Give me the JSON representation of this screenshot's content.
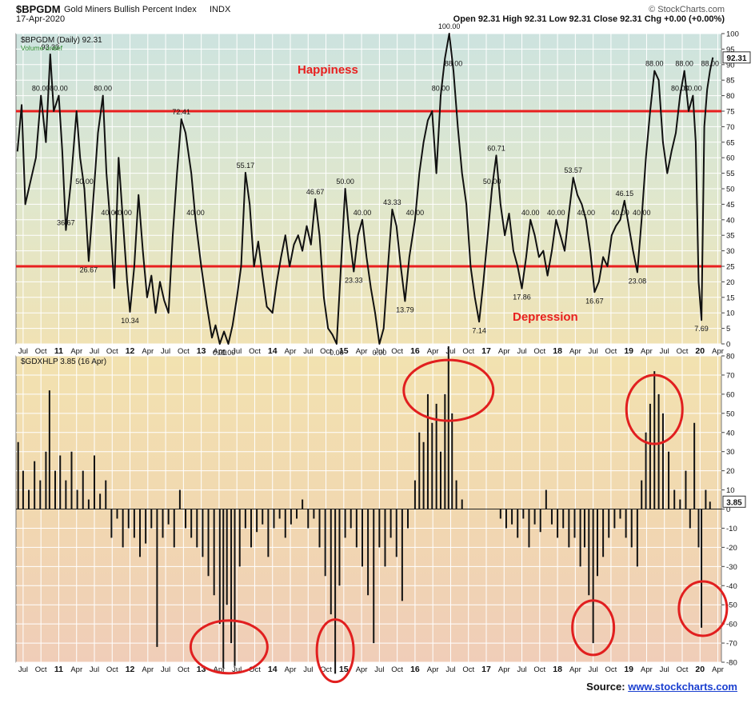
{
  "header": {
    "symbol": "$BPGDM",
    "name": "Gold Miners Bullish Percent Index",
    "exchange": "INDX",
    "date": "17-Apr-2020",
    "watermark": "© StockCharts.com",
    "quote": "Open 92.31  High 92.31  Low 92.31  Close 92.31  Chg +0.00 (+0.00%)"
  },
  "top_panel": {
    "legend": "$BPGDM (Daily) 92.31",
    "volume_note": "Volume undef",
    "annotation_top": "Happiness",
    "annotation_bottom": "Depression",
    "last_value_label": "92.31"
  },
  "bottom_panel": {
    "legend": "$GDXHLP 3.85 (16 Apr)",
    "last_value_label": "3.85"
  },
  "source": {
    "prefix": "Source:",
    "link": "www.stockcharts.com"
  },
  "colors": {
    "line": "#111111",
    "threshold": "#e81f1f",
    "circle": "#e11f1f",
    "annotation": "#e8201f",
    "grid": "#ffffff"
  },
  "chart_data": [
    {
      "type": "line",
      "title": "$BPGDM Gold Miners Bullish Percent Index",
      "series_label": "$BPGDM (Daily) 92.31",
      "ylim": [
        0,
        100
      ],
      "yticks": [
        0,
        5,
        10,
        15,
        20,
        25,
        30,
        35,
        40,
        45,
        50,
        55,
        60,
        65,
        70,
        75,
        80,
        85,
        90,
        95,
        100
      ],
      "xticks": [
        "Jul",
        "Oct",
        "11",
        "Apr",
        "Jul",
        "Oct",
        "12",
        "Apr",
        "Jul",
        "Oct",
        "13",
        "Apr",
        "Jul",
        "Oct",
        "14",
        "Apr",
        "Jul",
        "Oct",
        "15",
        "Apr",
        "Jul",
        "Oct",
        "16",
        "Apr",
        "Jul",
        "Oct",
        "17",
        "Apr",
        "Jul",
        "Oct",
        "18",
        "Apr",
        "Jul",
        "Oct",
        "19",
        "Apr",
        "Jul",
        "Oct",
        "20",
        "Apr"
      ],
      "horizontal_lines": [
        75,
        25
      ],
      "points": [
        [
          2010.42,
          62
        ],
        [
          2010.48,
          77
        ],
        [
          2010.53,
          45
        ],
        [
          2010.6,
          52
        ],
        [
          2010.68,
          60
        ],
        [
          2010.75,
          80
        ],
        [
          2010.82,
          65
        ],
        [
          2010.88,
          93.33
        ],
        [
          2010.93,
          75
        ],
        [
          2011.0,
          80
        ],
        [
          2011.05,
          62
        ],
        [
          2011.1,
          36.67
        ],
        [
          2011.17,
          52
        ],
        [
          2011.25,
          75
        ],
        [
          2011.3,
          60
        ],
        [
          2011.36,
          50
        ],
        [
          2011.42,
          26.67
        ],
        [
          2011.48,
          45
        ],
        [
          2011.55,
          68
        ],
        [
          2011.62,
          80.0
        ],
        [
          2011.67,
          55
        ],
        [
          2011.72,
          40
        ],
        [
          2011.78,
          18
        ],
        [
          2011.84,
          60
        ],
        [
          2011.9,
          40
        ],
        [
          2011.96,
          20
        ],
        [
          2012.0,
          10.34
        ],
        [
          2012.06,
          25
        ],
        [
          2012.12,
          48
        ],
        [
          2012.18,
          30
        ],
        [
          2012.24,
          15
        ],
        [
          2012.3,
          22
        ],
        [
          2012.36,
          10
        ],
        [
          2012.42,
          20
        ],
        [
          2012.48,
          14
        ],
        [
          2012.54,
          10
        ],
        [
          2012.6,
          35
        ],
        [
          2012.66,
          55
        ],
        [
          2012.72,
          72.41
        ],
        [
          2012.78,
          68
        ],
        [
          2012.86,
          55
        ],
        [
          2012.92,
          40
        ],
        [
          2013.0,
          25
        ],
        [
          2013.08,
          12
        ],
        [
          2013.15,
          2
        ],
        [
          2013.2,
          6
        ],
        [
          2013.26,
          0
        ],
        [
          2013.32,
          4
        ],
        [
          2013.38,
          0
        ],
        [
          2013.44,
          6
        ],
        [
          2013.5,
          15
        ],
        [
          2013.56,
          25
        ],
        [
          2013.62,
          55.17
        ],
        [
          2013.68,
          45
        ],
        [
          2013.74,
          25
        ],
        [
          2013.8,
          33
        ],
        [
          2013.86,
          22
        ],
        [
          2013.92,
          12
        ],
        [
          2014.0,
          10
        ],
        [
          2014.06,
          20
        ],
        [
          2014.12,
          28
        ],
        [
          2014.18,
          35
        ],
        [
          2014.24,
          25
        ],
        [
          2014.3,
          32
        ],
        [
          2014.36,
          35
        ],
        [
          2014.42,
          30
        ],
        [
          2014.48,
          38
        ],
        [
          2014.54,
          32
        ],
        [
          2014.6,
          46.67
        ],
        [
          2014.66,
          35
        ],
        [
          2014.72,
          15
        ],
        [
          2014.78,
          5
        ],
        [
          2014.84,
          3
        ],
        [
          2014.9,
          0
        ],
        [
          2014.96,
          25
        ],
        [
          2015.02,
          50.0
        ],
        [
          2015.08,
          35
        ],
        [
          2015.14,
          23.33
        ],
        [
          2015.2,
          35
        ],
        [
          2015.26,
          40.0
        ],
        [
          2015.32,
          28
        ],
        [
          2015.38,
          18
        ],
        [
          2015.44,
          10
        ],
        [
          2015.5,
          0.0
        ],
        [
          2015.56,
          5
        ],
        [
          2015.62,
          25
        ],
        [
          2015.68,
          43.33
        ],
        [
          2015.74,
          38
        ],
        [
          2015.8,
          25
        ],
        [
          2015.86,
          13.79
        ],
        [
          2015.92,
          28
        ],
        [
          2016.0,
          40
        ],
        [
          2016.06,
          55
        ],
        [
          2016.12,
          65
        ],
        [
          2016.18,
          72
        ],
        [
          2016.24,
          75
        ],
        [
          2016.3,
          55
        ],
        [
          2016.36,
          80
        ],
        [
          2016.42,
          92
        ],
        [
          2016.48,
          100.0
        ],
        [
          2016.54,
          88
        ],
        [
          2016.6,
          70
        ],
        [
          2016.66,
          55
        ],
        [
          2016.72,
          45
        ],
        [
          2016.78,
          25
        ],
        [
          2016.84,
          15
        ],
        [
          2016.9,
          7.14
        ],
        [
          2016.96,
          20
        ],
        [
          2017.02,
          35
        ],
        [
          2017.08,
          50
        ],
        [
          2017.14,
          60.71
        ],
        [
          2017.2,
          45
        ],
        [
          2017.26,
          35
        ],
        [
          2017.32,
          42
        ],
        [
          2017.38,
          30
        ],
        [
          2017.44,
          25
        ],
        [
          2017.5,
          17.86
        ],
        [
          2017.56,
          28
        ],
        [
          2017.62,
          40
        ],
        [
          2017.68,
          35
        ],
        [
          2017.74,
          28
        ],
        [
          2017.8,
          30
        ],
        [
          2017.86,
          22
        ],
        [
          2017.92,
          30
        ],
        [
          2017.98,
          40
        ],
        [
          2018.04,
          35
        ],
        [
          2018.1,
          30
        ],
        [
          2018.16,
          42
        ],
        [
          2018.22,
          53.57
        ],
        [
          2018.28,
          48
        ],
        [
          2018.34,
          45
        ],
        [
          2018.4,
          40
        ],
        [
          2018.46,
          30
        ],
        [
          2018.52,
          16.67
        ],
        [
          2018.58,
          20
        ],
        [
          2018.64,
          28
        ],
        [
          2018.7,
          25
        ],
        [
          2018.76,
          35
        ],
        [
          2018.82,
          38
        ],
        [
          2018.88,
          40
        ],
        [
          2018.94,
          46.15
        ],
        [
          2019.0,
          38
        ],
        [
          2019.06,
          30
        ],
        [
          2019.12,
          23.08
        ],
        [
          2019.18,
          40
        ],
        [
          2019.24,
          60
        ],
        [
          2019.3,
          75
        ],
        [
          2019.36,
          88
        ],
        [
          2019.42,
          85
        ],
        [
          2019.48,
          65
        ],
        [
          2019.54,
          55
        ],
        [
          2019.6,
          62
        ],
        [
          2019.66,
          68
        ],
        [
          2019.72,
          80
        ],
        [
          2019.78,
          88.0
        ],
        [
          2019.84,
          75
        ],
        [
          2019.9,
          80
        ],
        [
          2019.94,
          65
        ],
        [
          2019.98,
          20
        ],
        [
          2020.02,
          7.69
        ],
        [
          2020.06,
          70
        ],
        [
          2020.1,
          82
        ],
        [
          2020.14,
          88
        ],
        [
          2020.18,
          92.31
        ]
      ]
    },
    {
      "type": "bar",
      "title": "$GDXHLP",
      "series_label": "$GDXHLP 3.85 (16 Apr)",
      "ylim": [
        -80,
        80
      ],
      "yticks": [
        80,
        70,
        60,
        50,
        40,
        30,
        20,
        10,
        0,
        -10,
        -20,
        -30,
        -40,
        -50,
        -60,
        -70,
        -80
      ],
      "xticks": [
        "Jul",
        "Oct",
        "11",
        "Apr",
        "Jul",
        "Oct",
        "12",
        "Apr",
        "Jul",
        "Oct",
        "13",
        "Apr",
        "Jul",
        "Oct",
        "14",
        "Apr",
        "Jul",
        "Oct",
        "15",
        "Apr",
        "Jul",
        "Oct",
        "16",
        "Apr",
        "Jul",
        "Oct",
        "17",
        "Apr",
        "Jul",
        "Oct",
        "18",
        "Apr",
        "Jul",
        "Oct",
        "19",
        "Apr",
        "Jul",
        "Oct",
        "20",
        "Apr"
      ],
      "points": [
        [
          2010.43,
          35
        ],
        [
          2010.5,
          20
        ],
        [
          2010.58,
          10
        ],
        [
          2010.66,
          25
        ],
        [
          2010.74,
          15
        ],
        [
          2010.82,
          30
        ],
        [
          2010.87,
          62
        ],
        [
          2010.95,
          20
        ],
        [
          2011.02,
          28
        ],
        [
          2011.1,
          15
        ],
        [
          2011.18,
          30
        ],
        [
          2011.26,
          10
        ],
        [
          2011.34,
          20
        ],
        [
          2011.42,
          5
        ],
        [
          2011.5,
          28
        ],
        [
          2011.58,
          8
        ],
        [
          2011.66,
          15
        ],
        [
          2011.74,
          -15
        ],
        [
          2011.82,
          -5
        ],
        [
          2011.9,
          -20
        ],
        [
          2011.98,
          -10
        ],
        [
          2012.06,
          -15
        ],
        [
          2012.14,
          -25
        ],
        [
          2012.22,
          -18
        ],
        [
          2012.3,
          -10
        ],
        [
          2012.38,
          -72
        ],
        [
          2012.46,
          -15
        ],
        [
          2012.54,
          -8
        ],
        [
          2012.62,
          -20
        ],
        [
          2012.7,
          10
        ],
        [
          2012.78,
          -10
        ],
        [
          2012.86,
          -15
        ],
        [
          2012.94,
          -20
        ],
        [
          2013.02,
          -25
        ],
        [
          2013.1,
          -35
        ],
        [
          2013.18,
          -45
        ],
        [
          2013.26,
          -60
        ],
        [
          2013.31,
          -83
        ],
        [
          2013.36,
          -50
        ],
        [
          2013.42,
          -70
        ],
        [
          2013.47,
          -82
        ],
        [
          2013.54,
          -30
        ],
        [
          2013.62,
          -10
        ],
        [
          2013.7,
          -20
        ],
        [
          2013.78,
          -12
        ],
        [
          2013.86,
          -8
        ],
        [
          2013.94,
          -25
        ],
        [
          2014.02,
          -10
        ],
        [
          2014.1,
          -5
        ],
        [
          2014.18,
          -15
        ],
        [
          2014.26,
          -8
        ],
        [
          2014.34,
          -5
        ],
        [
          2014.42,
          5
        ],
        [
          2014.5,
          -10
        ],
        [
          2014.58,
          -5
        ],
        [
          2014.66,
          -20
        ],
        [
          2014.74,
          -35
        ],
        [
          2014.82,
          -55
        ],
        [
          2014.88,
          -86
        ],
        [
          2014.94,
          -40
        ],
        [
          2015.02,
          -15
        ],
        [
          2015.1,
          -10
        ],
        [
          2015.18,
          -20
        ],
        [
          2015.26,
          -30
        ],
        [
          2015.34,
          -45
        ],
        [
          2015.42,
          -70
        ],
        [
          2015.5,
          -20
        ],
        [
          2015.58,
          -30
        ],
        [
          2015.66,
          -15
        ],
        [
          2015.74,
          -25
        ],
        [
          2015.82,
          -48
        ],
        [
          2015.9,
          -10
        ],
        [
          2016.0,
          15
        ],
        [
          2016.06,
          40
        ],
        [
          2016.12,
          35
        ],
        [
          2016.18,
          60
        ],
        [
          2016.24,
          45
        ],
        [
          2016.3,
          55
        ],
        [
          2016.36,
          30
        ],
        [
          2016.42,
          60
        ],
        [
          2016.47,
          85
        ],
        [
          2016.52,
          50
        ],
        [
          2016.58,
          15
        ],
        [
          2016.66,
          5
        ],
        [
          2016.74,
          0
        ],
        [
          2016.82,
          0
        ],
        [
          2016.9,
          0
        ],
        [
          2017.0,
          0
        ],
        [
          2017.1,
          0
        ],
        [
          2017.2,
          -5
        ],
        [
          2017.28,
          -10
        ],
        [
          2017.36,
          -8
        ],
        [
          2017.44,
          -15
        ],
        [
          2017.52,
          -5
        ],
        [
          2017.6,
          -20
        ],
        [
          2017.68,
          -8
        ],
        [
          2017.76,
          -12
        ],
        [
          2017.84,
          10
        ],
        [
          2017.92,
          -8
        ],
        [
          2018.0,
          -15
        ],
        [
          2018.08,
          -10
        ],
        [
          2018.16,
          -20
        ],
        [
          2018.24,
          -15
        ],
        [
          2018.32,
          -30
        ],
        [
          2018.38,
          -20
        ],
        [
          2018.44,
          -45
        ],
        [
          2018.5,
          -70
        ],
        [
          2018.56,
          -35
        ],
        [
          2018.64,
          -25
        ],
        [
          2018.72,
          -15
        ],
        [
          2018.8,
          -10
        ],
        [
          2018.88,
          -5
        ],
        [
          2018.96,
          -15
        ],
        [
          2019.04,
          -20
        ],
        [
          2019.12,
          -30
        ],
        [
          2019.18,
          15
        ],
        [
          2019.24,
          40
        ],
        [
          2019.3,
          55
        ],
        [
          2019.36,
          72
        ],
        [
          2019.42,
          60
        ],
        [
          2019.48,
          50
        ],
        [
          2019.56,
          30
        ],
        [
          2019.64,
          10
        ],
        [
          2019.72,
          5
        ],
        [
          2019.8,
          20
        ],
        [
          2019.86,
          -10
        ],
        [
          2019.92,
          45
        ],
        [
          2019.98,
          -20
        ],
        [
          2020.02,
          -62
        ],
        [
          2020.08,
          10
        ],
        [
          2020.14,
          3.85
        ]
      ]
    }
  ]
}
